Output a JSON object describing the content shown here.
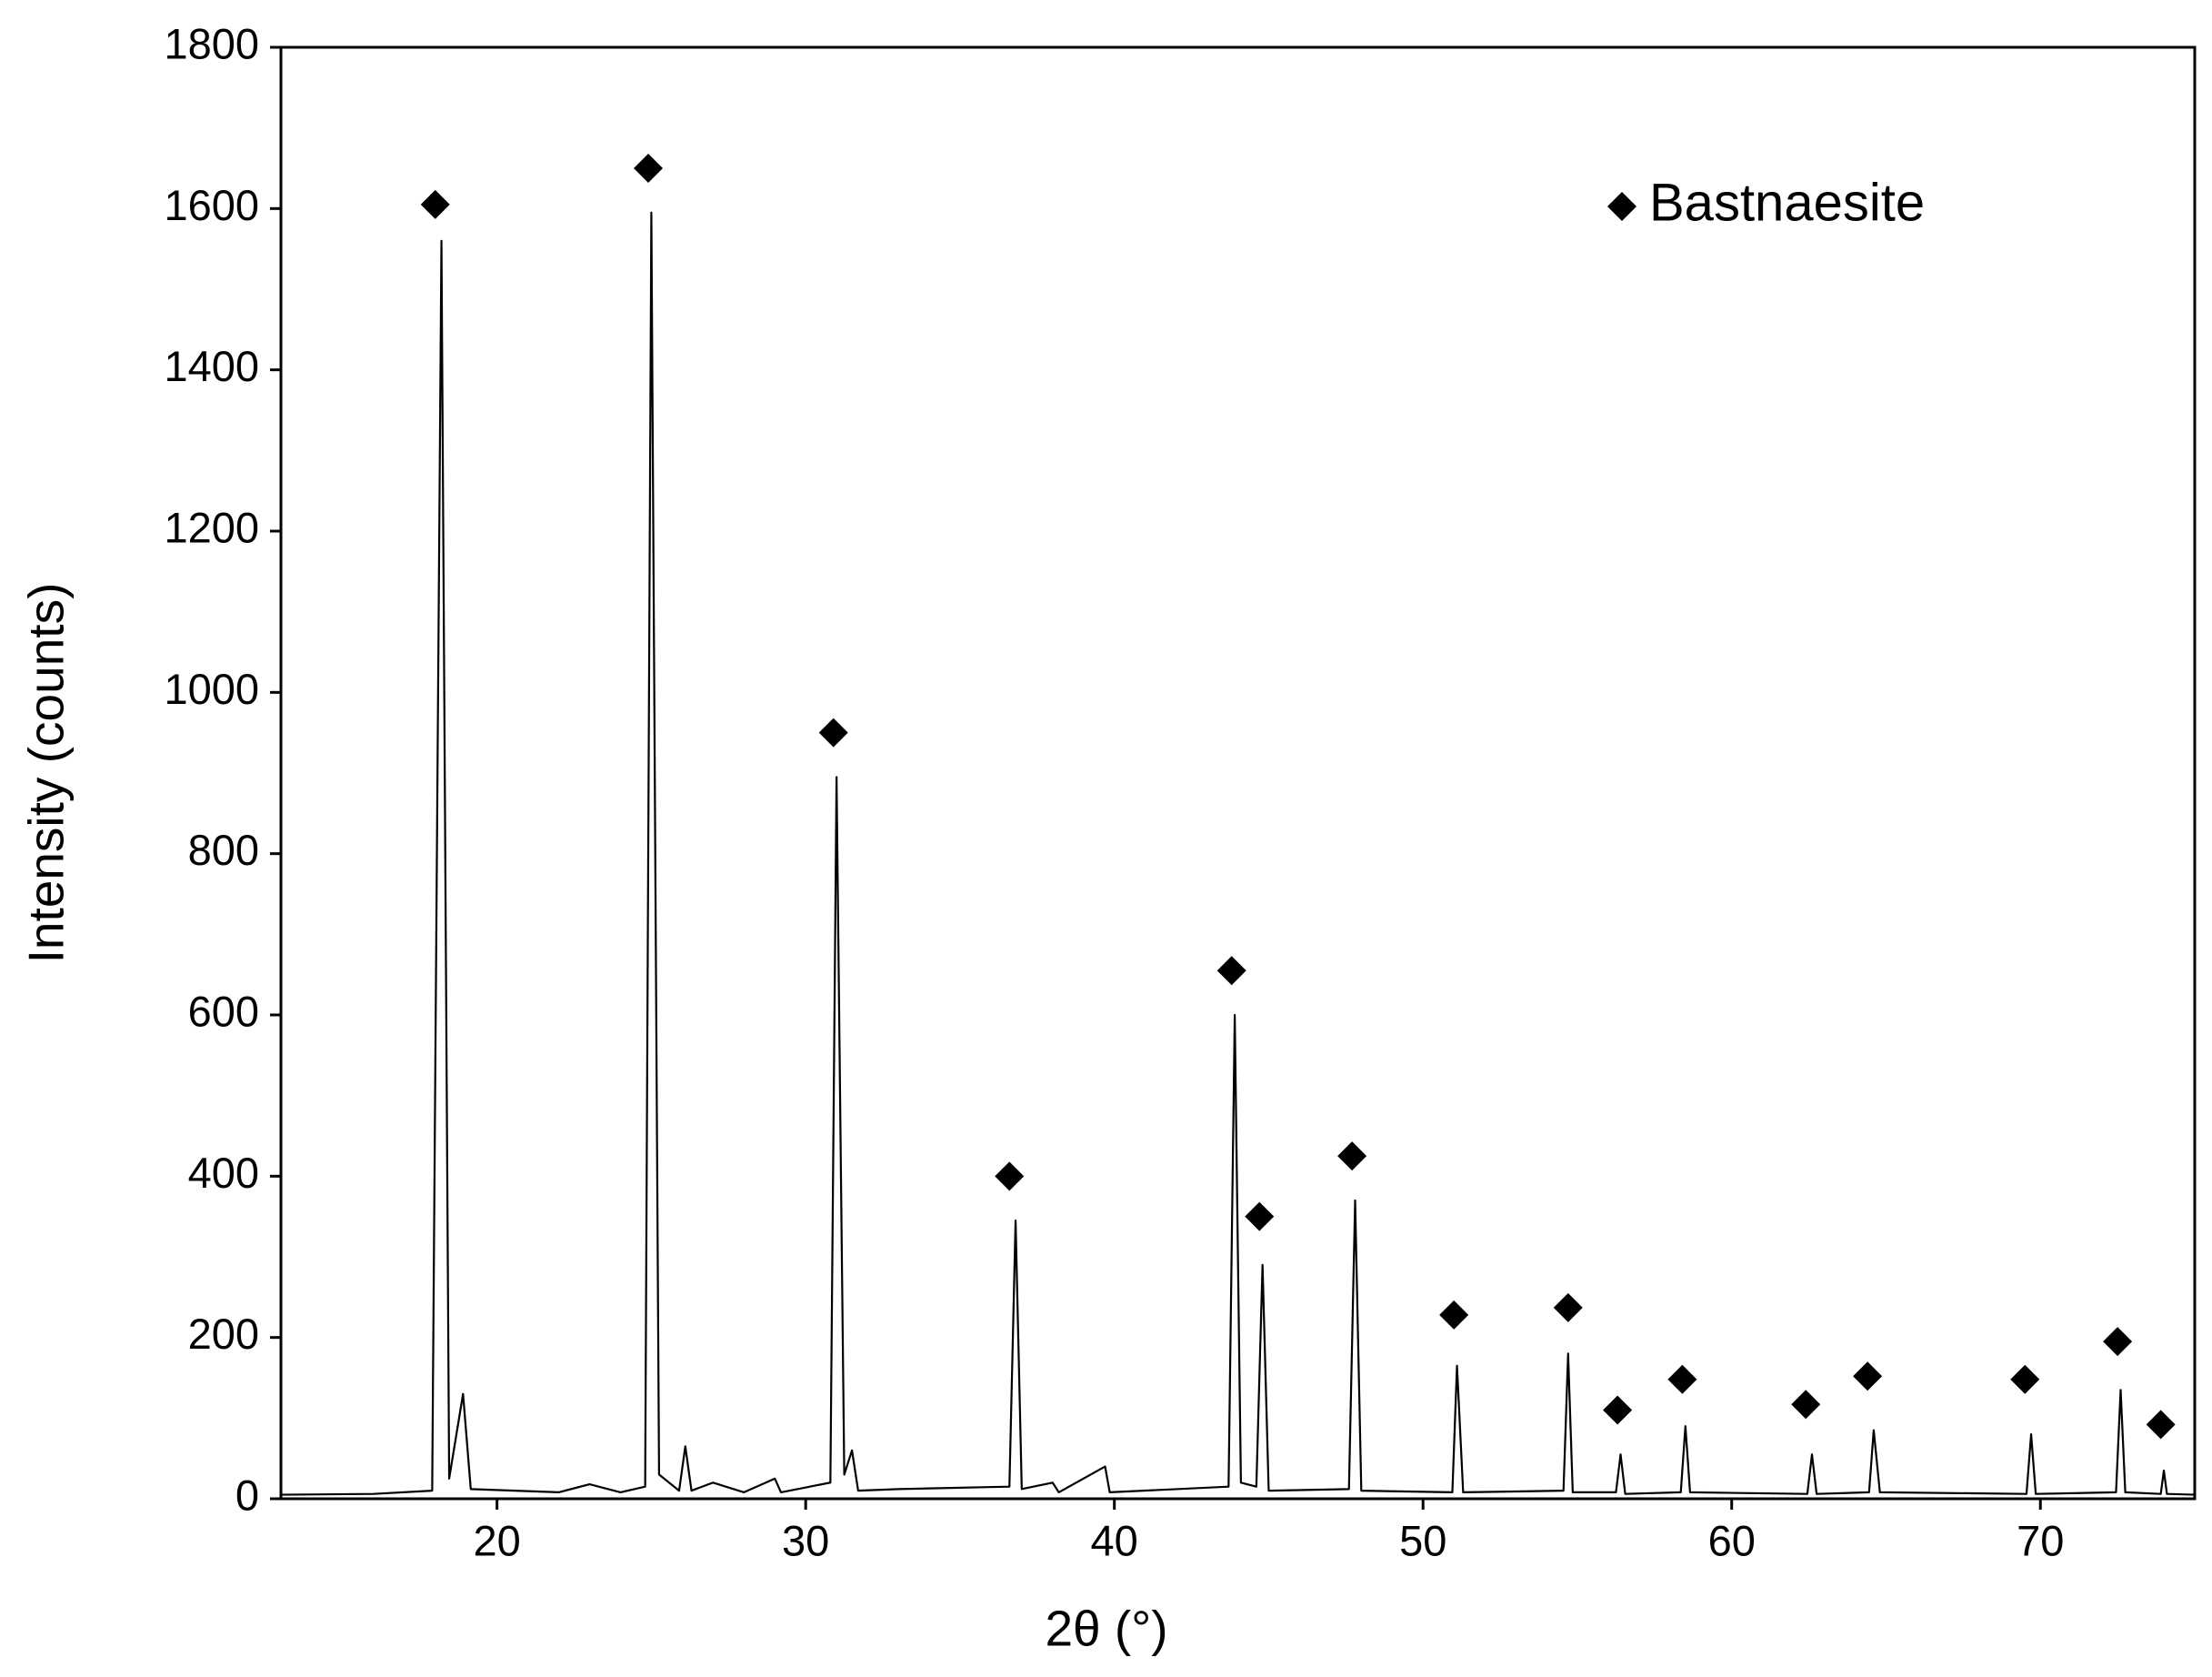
{
  "chart_data": {
    "type": "line",
    "x_label": "2θ (°)",
    "y_label": "Intensity (counts)",
    "xlim": [
      13,
      75
    ],
    "ylim": [
      0,
      1800
    ],
    "xticks": [
      20,
      30,
      40,
      50,
      60,
      70
    ],
    "yticks": [
      0,
      200,
      400,
      600,
      800,
      1000,
      1200,
      1400,
      1600,
      1800
    ],
    "legend": "upper right",
    "series": [
      {
        "type": "line",
        "color": "#000000",
        "x": [
          13,
          16,
          17.9,
          18.2,
          18.45,
          18.9,
          19.15,
          22,
          23,
          24,
          24.8,
          25.0,
          25.25,
          25.9,
          26.1,
          26.3,
          27,
          28,
          29,
          29.2,
          30.8,
          31.0,
          31.25,
          31.5,
          31.7,
          33,
          36.6,
          36.8,
          37.0,
          38,
          38.2,
          39.7,
          39.85,
          43.7,
          43.9,
          44.1,
          44.6,
          44.8,
          45.0,
          47.6,
          47.8,
          48.0,
          50.95,
          51.1,
          51.3,
          54.55,
          54.7,
          54.85,
          56.25,
          56.4,
          56.55,
          58.35,
          58.5,
          58.65,
          62.45,
          62.6,
          62.75,
          64.45,
          64.6,
          64.8,
          69.55,
          69.7,
          69.85,
          72.45,
          72.6,
          72.75,
          73.9,
          74.0,
          74.1,
          75
        ],
        "values": [
          5,
          6,
          10,
          1560,
          25,
          130,
          12,
          8,
          18,
          8,
          15,
          1595,
          30,
          10,
          65,
          10,
          20,
          8,
          25,
          8,
          20,
          895,
          30,
          60,
          10,
          12,
          15,
          345,
          12,
          20,
          8,
          40,
          8,
          15,
          600,
          20,
          15,
          290,
          10,
          12,
          370,
          10,
          8,
          165,
          8,
          10,
          180,
          8,
          8,
          55,
          6,
          8,
          90,
          8,
          6,
          55,
          6,
          8,
          85,
          8,
          6,
          80,
          6,
          8,
          135,
          8,
          6,
          35,
          6,
          5
        ]
      },
      {
        "type": "scatter",
        "name": "Bastnaesite",
        "marker": "diamond",
        "color": "#000000",
        "x": [
          18.0,
          24.9,
          30.9,
          36.6,
          43.8,
          44.7,
          47.7,
          51.0,
          54.7,
          56.3,
          58.4,
          62.4,
          64.4,
          69.5,
          72.5,
          73.9
        ],
        "values": [
          1605,
          1650,
          950,
          400,
          655,
          350,
          425,
          228,
          237,
          110,
          148,
          117,
          152,
          148,
          195,
          92
        ]
      }
    ]
  }
}
